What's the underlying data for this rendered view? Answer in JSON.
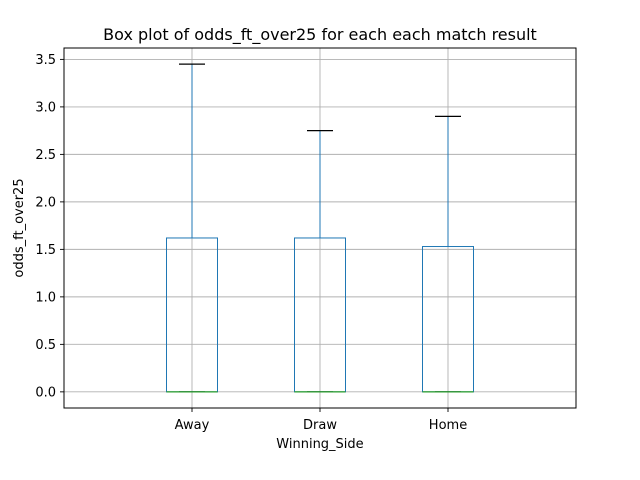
{
  "chart_data": {
    "type": "box",
    "title": "Box plot of odds_ft_over25 for each each match result",
    "xlabel": "Winning_Side",
    "ylabel": "odds_ft_over25",
    "categories": [
      "Away",
      "Draw",
      "Home"
    ],
    "boxes": [
      {
        "category": "Away",
        "whisker_low": 0.0,
        "q1": 0.0,
        "median": 0.0,
        "q3": 1.62,
        "whisker_high": 3.45
      },
      {
        "category": "Draw",
        "whisker_low": 0.0,
        "q1": 0.0,
        "median": 0.0,
        "q3": 1.62,
        "whisker_high": 2.75
      },
      {
        "category": "Home",
        "whisker_low": 0.0,
        "q1": 0.0,
        "median": 0.0,
        "q3": 1.53,
        "whisker_high": 2.9
      }
    ],
    "ylim": [
      -0.17,
      3.62
    ],
    "yticks": [
      0.0,
      0.5,
      1.0,
      1.5,
      2.0,
      2.5,
      3.0,
      3.5
    ],
    "ytick_labels": [
      "0.0",
      "0.5",
      "1.0",
      "1.5",
      "2.0",
      "2.5",
      "3.0",
      "3.5"
    ],
    "grid": true,
    "colors": {
      "box": "#1f77b4",
      "median": "#2ca02c",
      "cap": "#000000",
      "grid": "#b0b0b0"
    }
  }
}
